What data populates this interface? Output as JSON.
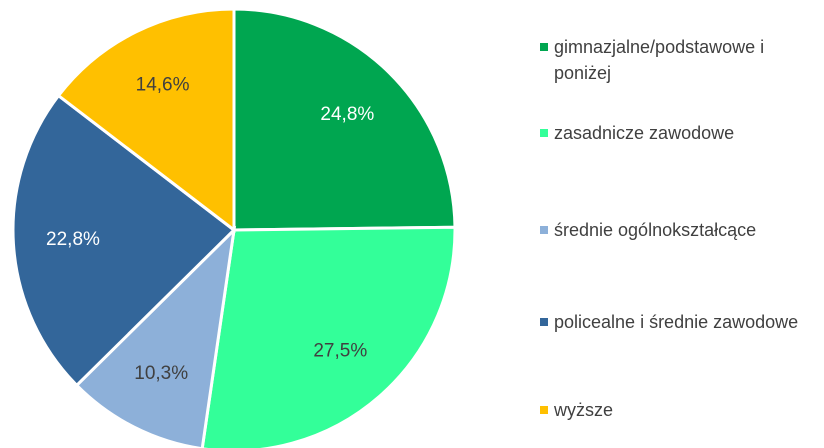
{
  "chart_data": {
    "type": "pie",
    "categories": [
      "gimnazjalne/podstawowe i poniżej",
      "zasadnicze zawodowe",
      "średnie ogólnokształcące",
      "policealne i średnie zawodowe",
      "wyższe"
    ],
    "values": [
      24.8,
      27.5,
      10.3,
      22.8,
      14.6
    ],
    "value_labels": [
      "24,8%",
      "27,5%",
      "10,3%",
      "22,8%",
      "14,6%"
    ],
    "colors": [
      "#00a650",
      "#33ff99",
      "#8db0d9",
      "#33669a",
      "#ffc000"
    ],
    "label_colors": [
      "#ffffff",
      "#404040",
      "#404040",
      "#ffffff",
      "#404040"
    ],
    "legend": "right"
  }
}
